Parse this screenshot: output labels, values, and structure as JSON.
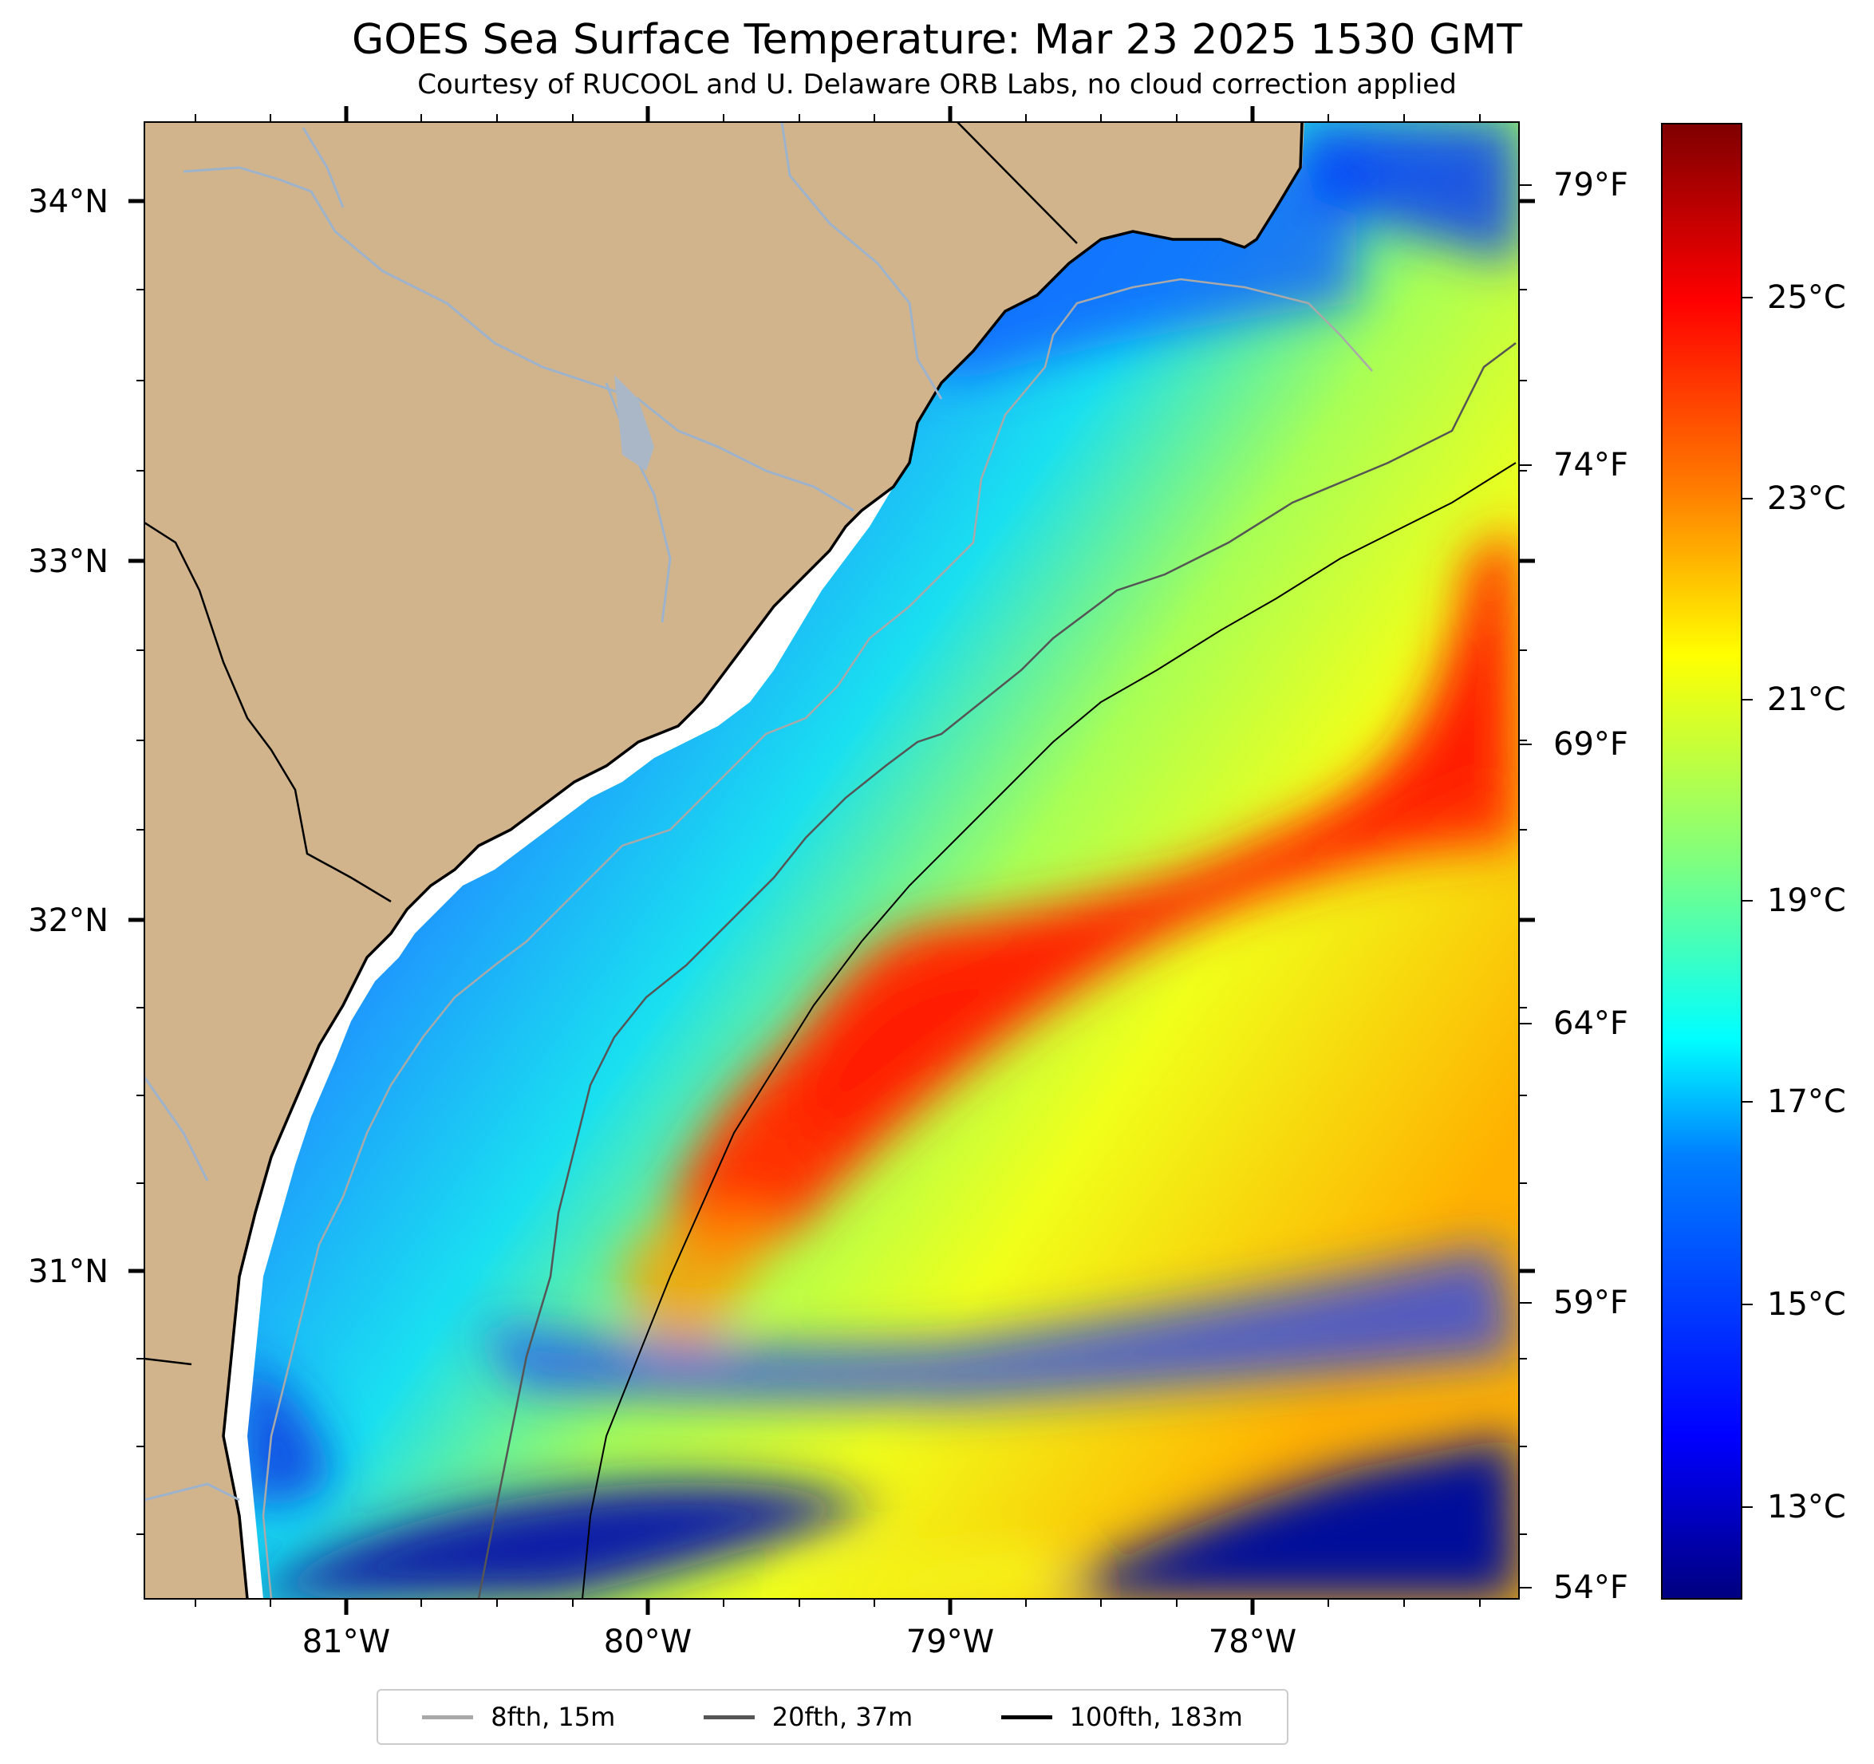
{
  "header": {
    "title": "GOES Sea Surface Temperature: Mar 23 2025 1530 GMT",
    "subtitle": "Courtesy of RUCOOL and U. Delaware ORB Labs, no cloud correction applied"
  },
  "axes": {
    "lat_labels": [
      "34°N",
      "33°N",
      "32°N",
      "31°N"
    ],
    "lon_labels": [
      "81°W",
      "80°W",
      "79°W",
      "78°W"
    ]
  },
  "colorbar": {
    "unit": "°C",
    "range_c": [
      12.2,
      27.0
    ],
    "celsius_labels": [
      "25°C",
      "23°C",
      "21°C",
      "19°C",
      "17°C",
      "15°C",
      "13°C"
    ],
    "fahrenheit_labels": [
      "79°F",
      "74°F",
      "69°F",
      "64°F",
      "59°F",
      "54°F"
    ],
    "colors": [
      "#00007f",
      "#0000ff",
      "#007fff",
      "#00ffff",
      "#7fff7f",
      "#ffff00",
      "#ff7f00",
      "#ff0000",
      "#7f0000"
    ]
  },
  "legend": {
    "items": [
      {
        "label": "8fth, 15m",
        "color": "#a9a9a9"
      },
      {
        "label": "20fth, 37m",
        "color": "#555555"
      },
      {
        "label": "100fth, 183m",
        "color": "#000000"
      }
    ]
  },
  "colors": {
    "land": "#d2b48c",
    "coastline": "#000000",
    "rivers": "#9db3cc"
  }
}
